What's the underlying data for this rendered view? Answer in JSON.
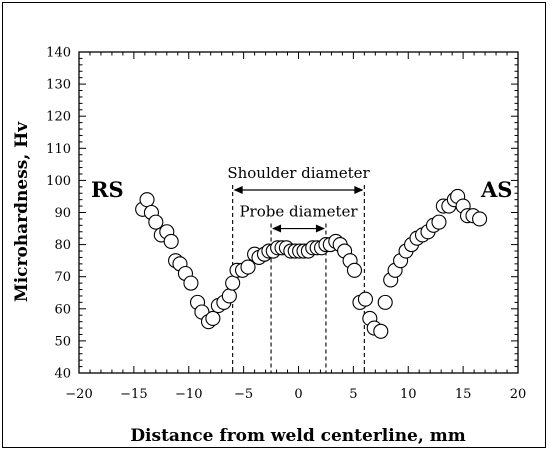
{
  "chart_data": {
    "type": "scatter",
    "title": "",
    "xlabel": "Distance from weld centerline, mm",
    "ylabel": "Microhardness, Hv",
    "xlim": [
      -20,
      20
    ],
    "ylim": [
      40,
      140
    ],
    "xticks": [
      -20,
      -15,
      -10,
      -5,
      0,
      5,
      10,
      15,
      20
    ],
    "yticks": [
      40,
      50,
      60,
      70,
      80,
      90,
      100,
      110,
      120,
      130,
      140
    ],
    "grid": false,
    "marker": "open-circle",
    "side_labels": {
      "left": "RS",
      "right": "AS"
    },
    "annotations": {
      "shoulder": {
        "text": "Shoulder diameter",
        "x_start": -6,
        "x_end": 6,
        "y": 97
      },
      "probe": {
        "text": "Probe diameter",
        "x_start": -2.5,
        "x_end": 2.5,
        "y": 85
      }
    },
    "series": [
      {
        "points": [
          [
            -14.2,
            91
          ],
          [
            -13.8,
            94
          ],
          [
            -13.4,
            90
          ],
          [
            -13.0,
            87
          ],
          [
            -12.5,
            83
          ],
          [
            -12.0,
            84
          ],
          [
            -11.6,
            81
          ],
          [
            -11.2,
            75
          ],
          [
            -10.8,
            74
          ],
          [
            -10.3,
            71
          ],
          [
            -9.8,
            68
          ],
          [
            -9.2,
            62
          ],
          [
            -8.8,
            59
          ],
          [
            -8.2,
            56
          ],
          [
            -7.8,
            57
          ],
          [
            -7.3,
            61
          ],
          [
            -6.8,
            62
          ],
          [
            -6.3,
            64
          ],
          [
            -6.0,
            68
          ],
          [
            -5.6,
            72
          ],
          [
            -5.1,
            72
          ],
          [
            -4.6,
            73
          ],
          [
            -4.0,
            77
          ],
          [
            -3.6,
            76
          ],
          [
            -3.1,
            77
          ],
          [
            -2.7,
            78
          ],
          [
            -2.3,
            78
          ],
          [
            -1.9,
            79
          ],
          [
            -1.5,
            79
          ],
          [
            -1.1,
            79
          ],
          [
            -0.7,
            78
          ],
          [
            -0.3,
            78
          ],
          [
            0.1,
            78
          ],
          [
            0.5,
            78
          ],
          [
            0.9,
            78
          ],
          [
            1.3,
            79
          ],
          [
            1.7,
            79
          ],
          [
            2.1,
            79
          ],
          [
            2.5,
            80
          ],
          [
            2.9,
            80
          ],
          [
            3.4,
            81
          ],
          [
            3.8,
            80
          ],
          [
            4.2,
            78
          ],
          [
            4.7,
            75
          ],
          [
            5.1,
            72
          ],
          [
            5.6,
            62
          ],
          [
            6.1,
            63
          ],
          [
            6.5,
            57
          ],
          [
            6.9,
            54
          ],
          [
            7.5,
            53
          ],
          [
            7.9,
            62
          ],
          [
            8.4,
            69
          ],
          [
            8.8,
            72
          ],
          [
            9.3,
            75
          ],
          [
            9.8,
            78
          ],
          [
            10.3,
            80
          ],
          [
            10.8,
            82
          ],
          [
            11.3,
            83
          ],
          [
            11.8,
            84
          ],
          [
            12.3,
            86
          ],
          [
            12.8,
            87
          ],
          [
            13.2,
            92
          ],
          [
            13.7,
            92
          ],
          [
            14.2,
            94
          ],
          [
            14.5,
            95
          ],
          [
            15.0,
            92
          ],
          [
            15.4,
            89
          ],
          [
            15.9,
            89
          ],
          [
            16.5,
            88
          ]
        ]
      }
    ]
  }
}
